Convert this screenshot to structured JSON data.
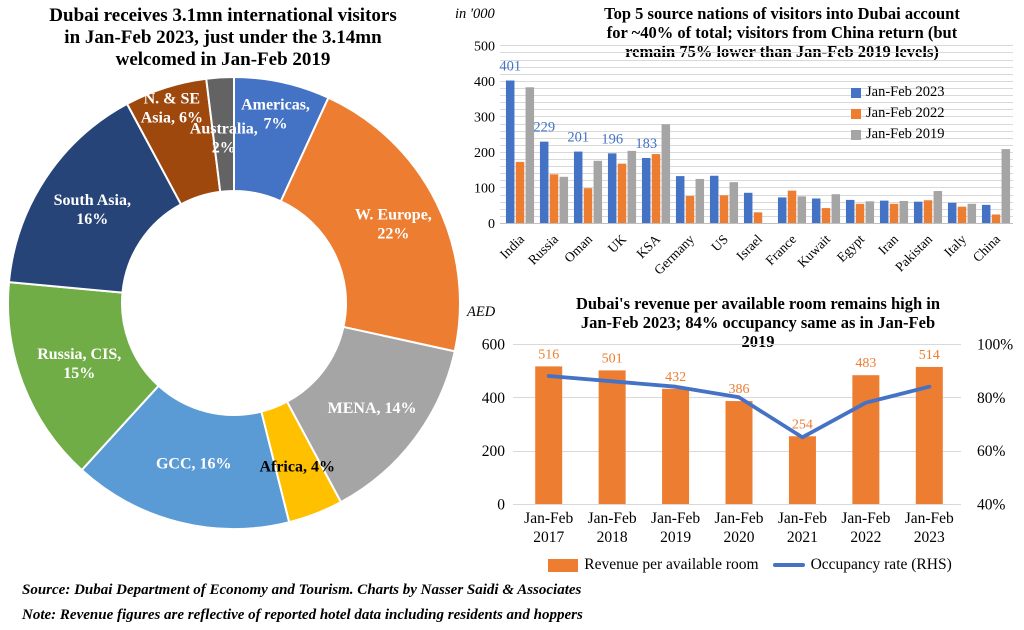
{
  "page": {
    "background": "#FFFFFF"
  },
  "palette": {
    "gridline": "#D9D9D9",
    "axis_line": "#BFBFBF",
    "title_text": "#000000",
    "bar_label_blue": "#4472C4",
    "bar_label_orange": "#ED7D31"
  },
  "footer": {
    "source_line": "Source: Dubai Department of Economy and Tourism. Charts by Nasser Saidi & Associates",
    "note_line": "Note: Revenue figures are reflective of reported hotel data including residents and hoppers"
  },
  "chart_data": [
    {
      "id": "visitors-by-region-donut",
      "type": "pie",
      "title": "Dubai receives 3.1mn international visitors in Jan-Feb 2023, just under the 3.14mn welcomed in Jan-Feb 2019",
      "title_lines": [
        "Dubai receives 3.1mn international visitors",
        "in Jan-Feb 2023, just under the 3.14mn",
        "welcomed in Jan-Feb 2019"
      ],
      "slices": [
        {
          "label": "Americas",
          "value": 7,
          "lines": [
            "Americas,",
            "7%"
          ],
          "color": "#4472C4",
          "label_color": "#FFFFFF",
          "label_radius": 194
        },
        {
          "label": "W. Europe",
          "value": 22,
          "lines": [
            "W. Europe,",
            "22%"
          ],
          "color": "#ED7D31",
          "label_color": "#FFFFFF",
          "label_radius": 178
        },
        {
          "label": "MENA",
          "value": 14,
          "lines": [
            "MENA, 14%"
          ],
          "color": "#A5A5A5",
          "label_color": "#FFFFFF",
          "label_radius": 173
        },
        {
          "label": "Africa",
          "value": 4,
          "lines": [
            "Africa, 4%"
          ],
          "color": "#FFC000",
          "label_color": "#000000",
          "label_radius": 175
        },
        {
          "label": "GCC",
          "value": 16,
          "lines": [
            "GCC, 16%"
          ],
          "color": "#5B9BD5",
          "label_color": "#FFFFFF",
          "label_radius": 165
        },
        {
          "label": "Russia, CIS",
          "value": 15,
          "lines": [
            "Russia, CIS,",
            "15%"
          ],
          "color": "#70AD47",
          "label_color": "#FFFFFF",
          "label_radius": 166
        },
        {
          "label": "South Asia",
          "value": 16,
          "lines": [
            "South Asia,",
            "16%"
          ],
          "color": "#264478",
          "label_color": "#FFFFFF",
          "label_radius": 170
        },
        {
          "label": "N. & SE Asia",
          "value": 6,
          "lines": [
            "N. & SE",
            "Asia, 6%"
          ],
          "color": "#9E480E",
          "label_color": "#FFFFFF",
          "label_radius": 205
        },
        {
          "label": "Australia",
          "value": 2,
          "lines": [
            "Australia,",
            "2%"
          ],
          "color": "#636363",
          "label_color": "#FFFFFF",
          "label_radius": 166
        }
      ]
    },
    {
      "id": "top-source-nations-bars",
      "type": "bar",
      "unit_label": "in '000",
      "title": "Top 5 source nations of visitors into Dubai account for ~40% of total; visitors from China return (but remain 75% lower than Jan-Feb 2019 levels)",
      "title_lines": [
        "Top 5 source nations of visitors into Dubai account",
        "for ~40% of total; visitors from China return (but",
        "remain 75% lower than Jan-Feb 2019 levels)"
      ],
      "categories": [
        "India",
        "Russia",
        "Oman",
        "UK",
        "KSA",
        "Germany",
        "US",
        "Israel",
        "France",
        "Kuwait",
        "Egypt",
        "Iran",
        "Pakistan",
        "Italy",
        "China"
      ],
      "series": [
        {
          "name": "Jan-Feb 2023",
          "color": "#4472C4",
          "values": [
            401,
            229,
            201,
            196,
            183,
            132,
            133,
            85,
            72,
            69,
            65,
            63,
            60,
            57,
            51
          ]
        },
        {
          "name": "Jan-Feb 2022",
          "color": "#ED7D31",
          "values": [
            172,
            137,
            98,
            167,
            194,
            76,
            78,
            30,
            91,
            42,
            54,
            54,
            64,
            46,
            24
          ]
        },
        {
          "name": "Jan-Feb 2019",
          "color": "#A5A5A5",
          "values": [
            382,
            130,
            175,
            203,
            278,
            124,
            115,
            0,
            75,
            81,
            61,
            62,
            90,
            54,
            208
          ]
        }
      ],
      "data_labels": {
        "series": "Jan-Feb 2023",
        "first_n": 5,
        "shown_values": [
          401,
          229,
          201,
          196,
          183
        ],
        "color": "#4472C4"
      },
      "ylim": [
        0,
        500
      ],
      "ytick_step": 100,
      "minor_grid_step": 20,
      "legend_position": "top-right"
    },
    {
      "id": "revpar-occupancy-combo",
      "type": "bar+line",
      "unit_label": "AED",
      "title": "Dubai's revenue per available room remains high in Jan-Feb 2023; 84% occupancy same as in Jan-Feb 2019",
      "title_lines": [
        "Dubai's revenue per available room remains high in",
        "Jan-Feb 2023; 84% occupancy same as in Jan-Feb",
        "2019"
      ],
      "categories": [
        "Jan-Feb 2017",
        "Jan-Feb 2018",
        "Jan-Feb 2019",
        "Jan-Feb 2020",
        "Jan-Feb 2021",
        "Jan-Feb 2022",
        "Jan-Feb 2023"
      ],
      "category_lines": [
        [
          "Jan-Feb",
          "2017"
        ],
        [
          "Jan-Feb",
          "2018"
        ],
        [
          "Jan-Feb",
          "2019"
        ],
        [
          "Jan-Feb",
          "2020"
        ],
        [
          "Jan-Feb",
          "2021"
        ],
        [
          "Jan-Feb",
          "2022"
        ],
        [
          "Jan-Feb",
          "2023"
        ]
      ],
      "bar_series": {
        "name": "Revenue per available room",
        "color": "#ED7D31",
        "axis": "left",
        "values": [
          516,
          501,
          432,
          386,
          254,
          483,
          514
        ]
      },
      "line_series": {
        "name": "Occupancy rate (RHS)",
        "color": "#4472C4",
        "axis": "right",
        "values_percent": [
          88,
          86,
          84,
          80,
          65,
          78,
          84
        ]
      },
      "left_axis": {
        "ticks": [
          0,
          200,
          400,
          600
        ],
        "range": [
          0,
          600
        ]
      },
      "right_axis": {
        "ticks": [
          "40%",
          "60%",
          "80%",
          "100%"
        ],
        "range_percent": [
          40,
          100
        ]
      },
      "legend_position": "bottom"
    }
  ]
}
